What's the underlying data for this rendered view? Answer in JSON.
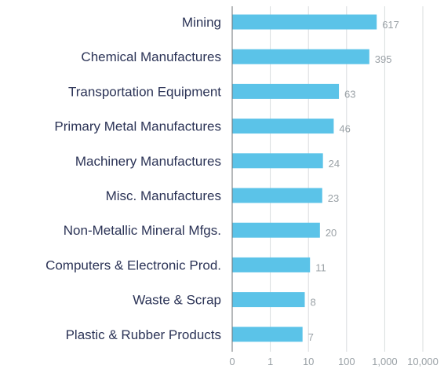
{
  "chart_data": {
    "type": "bar",
    "orientation": "horizontal",
    "x_scale": "log",
    "title": "",
    "xlabel": "",
    "ylabel": "",
    "categories": [
      "Mining",
      "Chemical Manufactures",
      "Transportation Equipment",
      "Primary Metal Manufactures",
      "Machinery Manufactures",
      "Misc. Manufactures",
      "Non-Metallic Mineral Mfgs.",
      "Computers & Electronic Prod.",
      "Waste & Scrap",
      "Plastic & Rubber Products"
    ],
    "values": [
      617,
      395,
      63,
      46,
      24,
      23,
      20,
      11,
      8,
      7
    ],
    "value_labels": [
      "617",
      "395",
      "63",
      "46",
      "24",
      "23",
      "20",
      "11",
      "8",
      "7"
    ],
    "x_ticks": [
      0,
      1,
      10,
      100,
      1000,
      10000
    ],
    "x_tick_labels": [
      "0",
      "1",
      "10",
      "100",
      "1,000",
      "10,000"
    ],
    "grid": true,
    "legend": "none",
    "bar_color": "#5bc3e8",
    "label_color": "#2b3356",
    "value_color": "#9aa1a6",
    "grid_color": "#d9dcde"
  }
}
